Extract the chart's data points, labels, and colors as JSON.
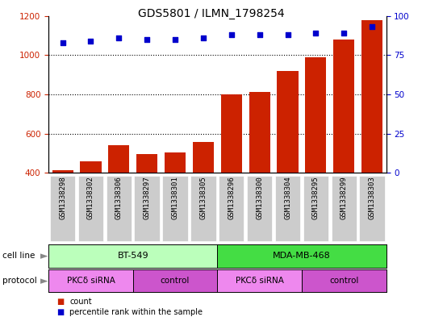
{
  "title": "GDS5801 / ILMN_1798254",
  "samples": [
    "GSM1338298",
    "GSM1338302",
    "GSM1338306",
    "GSM1338297",
    "GSM1338301",
    "GSM1338305",
    "GSM1338296",
    "GSM1338300",
    "GSM1338304",
    "GSM1338295",
    "GSM1338299",
    "GSM1338303"
  ],
  "bar_values": [
    415,
    460,
    540,
    495,
    503,
    558,
    800,
    810,
    920,
    990,
    1080,
    1180
  ],
  "dot_values": [
    83,
    84,
    86,
    85,
    85,
    86,
    88,
    88,
    88,
    89,
    89,
    93
  ],
  "bar_color": "#cc2200",
  "dot_color": "#0000cc",
  "ylim_left": [
    400,
    1200
  ],
  "ylim_right": [
    0,
    100
  ],
  "yticks_left": [
    400,
    600,
    800,
    1000,
    1200
  ],
  "yticks_right": [
    0,
    25,
    50,
    75,
    100
  ],
  "grid_vals": [
    600,
    800,
    1000
  ],
  "cell_line_groups": [
    {
      "label": "BT-549",
      "start": 0,
      "end": 6,
      "color": "#bbffbb"
    },
    {
      "label": "MDA-MB-468",
      "start": 6,
      "end": 12,
      "color": "#44dd44"
    }
  ],
  "protocol_groups": [
    {
      "label": "PKCδ siRNA",
      "start": 0,
      "end": 3,
      "color": "#ee88ee"
    },
    {
      "label": "control",
      "start": 3,
      "end": 6,
      "color": "#cc55cc"
    },
    {
      "label": "PKCδ siRNA",
      "start": 6,
      "end": 9,
      "color": "#ee88ee"
    },
    {
      "label": "control",
      "start": 9,
      "end": 12,
      "color": "#cc55cc"
    }
  ],
  "legend_items": [
    {
      "label": "count",
      "color": "#cc2200"
    },
    {
      "label": "percentile rank within the sample",
      "color": "#0000cc"
    }
  ],
  "xtick_bg": "#cccccc",
  "bg_color": "#ffffff",
  "tick_color_left": "#cc2200",
  "tick_color_right": "#0000cc",
  "bar_bottom": 400,
  "tick_fontsize": 7.5,
  "label_fontsize": 7.5,
  "title_fontsize": 10
}
